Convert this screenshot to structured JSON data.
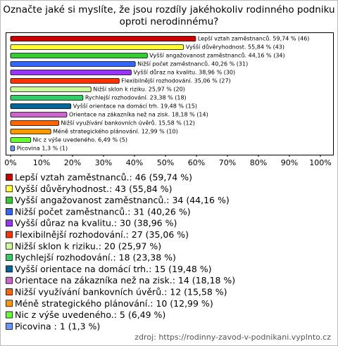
{
  "chart_data": {
    "type": "hbar",
    "title": [
      "Označte jaké si myslíte, že jsou rozdíly jakéhokoliv rodinného podniku",
      "oproti nerodinnému?"
    ],
    "categories": [
      "Lepší vztah zaměstnanců.",
      "Vyšší důvěryhodnost.",
      "Vyšší angažovanost zaměstnanců.",
      "Nižší počet zaměstnanců.",
      "Vyšší důraz na kvalitu.",
      "Flexibilnější rozhodování.",
      "Nižší sklon k riziku.",
      "Rychlejší rozhodování.",
      "Vyšší orientace na domácí trh.",
      "Orientace na zákazníka než na zisk.",
      "Nižší využívání bankovních úvěrů.",
      "Méně strategického plánování.",
      "Nic z výše uvedeného.",
      "Picovina"
    ],
    "values": [
      59.74,
      55.84,
      44.16,
      40.26,
      38.96,
      35.06,
      25.97,
      23.38,
      19.48,
      18.18,
      15.58,
      12.99,
      6.49,
      1.3
    ],
    "value_labels": [
      "Lepší vztah zaměstnanců. 59,74 % (46)",
      "Vyšší důvěryhodnost. 55,84 % (43)",
      "Vyšší angažovanost zaměstnanců. 44,16 % (34)",
      "Nižší počet zaměstnanců. 40,26 % (31)",
      "Vyšší důraz na kvalitu. 38,96 % (30)",
      "Flexibilnější rozhodování. 35,06 % (27)",
      "Nižší sklon k riziku. 25,97 % (20)",
      "Rychlejší rozhodování. 23,38 % (18)",
      "Vyšší orientace na domácí trh. 19,48 % (15)",
      "Orientace na zákazníka než na zisk. 18,18 % (14)",
      "Nižší využívání bankovních úvěrů. 15,58 % (12)",
      "Méně strategického plánování. 12,99 % (10)",
      "Nic z výše uvedeného. 6,49 % (5)",
      "Picovina  1,3 % (1)"
    ],
    "legend_labels": [
      "Lepší vztah zaměstnanců.: 46 (59,74 %)",
      "Vyšší důvěryhodnost.: 43 (55,84 %)",
      "Vyšší angažovanost zaměstnanců.: 34 (44,16 %)",
      "Nižší počet zaměstnanců.: 31 (40,26 %)",
      "Vyšší důraz na kvalitu.: 30 (38,96 %)",
      "Flexibilnější rozhodování.: 27 (35,06 %)",
      "Nižší sklon k riziku.: 20 (25,97 %)",
      "Rychlejší rozhodování.: 18 (23,38 %)",
      "Vyšší orientace na domácí trh.: 15 (19,48 %)",
      "Orientace na zákazníka než na zisk.: 14 (18,18 %)",
      "Nižší využívání bankovních úvěrů.: 12 (15,58 %)",
      "Méně strategického plánování.: 10 (12,99 %)",
      "Nic z výše uvedeného.: 5 (6,49 %)",
      "Picovina : 1 (1,3 %)"
    ],
    "colors": [
      "#cc0000",
      "#ffff33",
      "#33cc33",
      "#3366ff",
      "#9933ff",
      "#ff3300",
      "#ccff99",
      "#33cc66",
      "#006699",
      "#cc66cc",
      "#ff6600",
      "#ff9900",
      "#66ff33",
      "#6699ff"
    ],
    "xlim": [
      0,
      100
    ],
    "xticks": [
      {
        "value": 0,
        "label": "0%"
      },
      {
        "value": 10,
        "label": "10%"
      },
      {
        "value": 20,
        "label": "20%"
      },
      {
        "value": 30,
        "label": "30%"
      },
      {
        "value": 40,
        "label": "40%"
      },
      {
        "value": 50,
        "label": "50%"
      },
      {
        "value": 60,
        "label": "60%"
      },
      {
        "value": 70,
        "label": "70%"
      },
      {
        "value": 80,
        "label": "80%"
      },
      {
        "value": 90,
        "label": "90%"
      },
      {
        "value": 100,
        "label": "100%"
      }
    ],
    "source": "zdroj: https://rodinny-zavod-v-podnikani.vyplnto.cz"
  }
}
